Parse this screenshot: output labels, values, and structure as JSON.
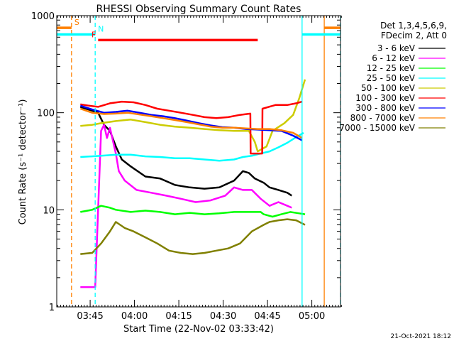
{
  "chart_data": {
    "type": "line",
    "title": "RHESSI Observing Summary Count Rates",
    "xlabel": "Start Time (22-Nov-02 03:33:42)",
    "ylabel": "Count Rate (s⁻¹ detector⁻¹)",
    "yscale": "log",
    "ylim": [
      1,
      1000
    ],
    "xlim": [
      0,
      96
    ],
    "x_units": "minutes after 03:33:42",
    "x_ticks": [
      {
        "value": 11.3,
        "label": "03:45"
      },
      {
        "value": 26.3,
        "label": "04:00"
      },
      {
        "value": 41.3,
        "label": "04:15"
      },
      {
        "value": 56.3,
        "label": "04:30"
      },
      {
        "value": 71.3,
        "label": "04:45"
      },
      {
        "value": 86.3,
        "label": "05:00"
      }
    ],
    "y_ticks": [
      {
        "value": 1,
        "label": "1"
      },
      {
        "value": 10,
        "label": "10"
      },
      {
        "value": 100,
        "label": "100"
      },
      {
        "value": 1000,
        "label": "1000"
      }
    ],
    "legend_header": [
      "Det 1,3,4,5,6,9,",
      "FDecim 2, Att 0"
    ],
    "series": [
      {
        "name": "3 - 6 keV",
        "color": "#000000",
        "x": [
          8,
          12,
          14,
          16,
          18,
          20,
          22,
          25,
          30,
          35,
          40,
          45,
          50,
          55,
          60,
          63,
          65,
          67,
          70,
          72,
          75,
          78,
          79.5
        ],
        "values": [
          115,
          105,
          100,
          75,
          65,
          45,
          33,
          28,
          22,
          21,
          18,
          17,
          16.5,
          17,
          20,
          25,
          24,
          21,
          19,
          17,
          16,
          15,
          14
        ]
      },
      {
        "name": "6 - 12 keV",
        "color": "#ff00ff",
        "x": [
          8,
          13,
          15,
          16,
          17,
          18,
          20,
          21,
          23,
          27,
          32,
          37,
          42,
          47,
          52,
          57,
          60,
          63,
          66,
          69,
          72,
          75,
          78,
          79.5
        ],
        "values": [
          1.6,
          1.6,
          65,
          75,
          55,
          70,
          38,
          25,
          20,
          16,
          15,
          14,
          13,
          12,
          12.5,
          14,
          17,
          16,
          16,
          13,
          11,
          12,
          11,
          10.5
        ]
      },
      {
        "name": "12 - 25 keV",
        "color": "#00ff00",
        "x": [
          8,
          12,
          15,
          18,
          20,
          25,
          30,
          35,
          40,
          45,
          50,
          55,
          60,
          63,
          66,
          69,
          70,
          73,
          76,
          79,
          82,
          84
        ],
        "values": [
          9.5,
          10,
          11,
          10.5,
          10,
          9.5,
          9.8,
          9.5,
          9,
          9.3,
          9,
          9.2,
          9.5,
          9.5,
          9.5,
          9.5,
          9,
          8.5,
          9,
          9.5,
          9.2,
          9
        ]
      },
      {
        "name": "25 - 50 keV",
        "color": "#00ffff",
        "x": [
          8,
          15,
          20,
          25,
          30,
          35,
          40,
          45,
          50,
          55,
          60,
          63,
          66,
          69,
          72,
          75,
          78,
          81,
          83.5
        ],
        "values": [
          35,
          36,
          37,
          37,
          35.5,
          35,
          34,
          34,
          33,
          32,
          33,
          35,
          36,
          38,
          40,
          44,
          49,
          56,
          62
        ]
      },
      {
        "name": "50 - 100 keV",
        "color": "#cccc00",
        "x": [
          8,
          12,
          15,
          20,
          25,
          30,
          35,
          40,
          45,
          50,
          55,
          60,
          65,
          67,
          68,
          71,
          73,
          77,
          80,
          82,
          84
        ],
        "values": [
          73,
          75,
          78,
          82,
          85,
          80,
          75,
          72,
          70,
          68,
          66,
          65,
          65,
          50,
          40,
          45,
          65,
          78,
          95,
          140,
          220
        ]
      },
      {
        "name": "100 - 300 keV",
        "color": "#ff0000",
        "x": [
          8,
          11,
          14,
          18,
          22,
          26,
          30,
          34,
          38,
          42,
          46,
          50,
          54,
          58,
          62,
          65.5,
          65.6,
          69.5,
          69.6,
          74,
          78,
          81,
          83
        ],
        "values": [
          122,
          118,
          115,
          125,
          130,
          128,
          120,
          110,
          105,
          100,
          95,
          90,
          88,
          90,
          95,
          98,
          38,
          38,
          110,
          120,
          120,
          125,
          130
        ]
      },
      {
        "name": "300 - 800 keV",
        "color": "#0000ff",
        "x": [
          8,
          12,
          16,
          20,
          24,
          28,
          32,
          36,
          40,
          44,
          48,
          52,
          56,
          60,
          64,
          68,
          72,
          76,
          80,
          83
        ],
        "values": [
          118,
          108,
          100,
          102,
          105,
          100,
          95,
          92,
          88,
          83,
          78,
          74,
          71,
          70,
          68,
          67,
          66,
          65,
          58,
          52
        ]
      },
      {
        "name": "800 - 7000 keV",
        "color": "#ff8000",
        "x": [
          8,
          12,
          16,
          20,
          24,
          28,
          32,
          36,
          40,
          44,
          48,
          52,
          56,
          60,
          64,
          68,
          72,
          76,
          80,
          83
        ],
        "values": [
          110,
          100,
          97,
          98,
          100,
          96,
          92,
          88,
          84,
          80,
          76,
          72,
          70,
          70,
          69,
          68,
          68,
          66,
          62,
          55
        ]
      },
      {
        "name": "7000 - 15000 keV",
        "color": "#808000",
        "x": [
          8,
          12,
          15,
          18,
          20,
          23,
          26,
          30,
          34,
          38,
          42,
          46,
          50,
          54,
          58,
          62,
          66,
          70,
          72,
          75,
          78,
          81,
          84
        ],
        "values": [
          3.5,
          3.6,
          4.5,
          6,
          7.5,
          6.5,
          6,
          5.2,
          4.5,
          3.8,
          3.6,
          3.5,
          3.6,
          3.8,
          4,
          4.5,
          6,
          7,
          7.5,
          7.8,
          8,
          7.8,
          7
        ]
      }
    ],
    "flags": [
      {
        "label": "S",
        "color": "#ff8000",
        "start": 0,
        "end": 5,
        "extra_start": 90.5,
        "extra_end": 96,
        "y": 750
      },
      {
        "label": "N",
        "color": "#00ffff",
        "start": 0,
        "end": 13,
        "extra_start": 83,
        "extra_end": 96,
        "y": 640
      },
      {
        "label": "F",
        "color": "#ff0000",
        "start": 14,
        "end": 68,
        "y": 560
      }
    ],
    "vertical_markers": [
      {
        "x": 5,
        "color": "#ff8000",
        "style": "dashed"
      },
      {
        "x": 13,
        "color": "#00ffff",
        "style": "dashed"
      },
      {
        "x": 83,
        "color": "#00ffff",
        "style": "solid"
      },
      {
        "x": 90.5,
        "color": "#ff8000",
        "style": "solid"
      },
      {
        "x": 96,
        "color": "#00ffff",
        "style": "dashed"
      }
    ],
    "footer": "21-Oct-2021 18:12"
  }
}
